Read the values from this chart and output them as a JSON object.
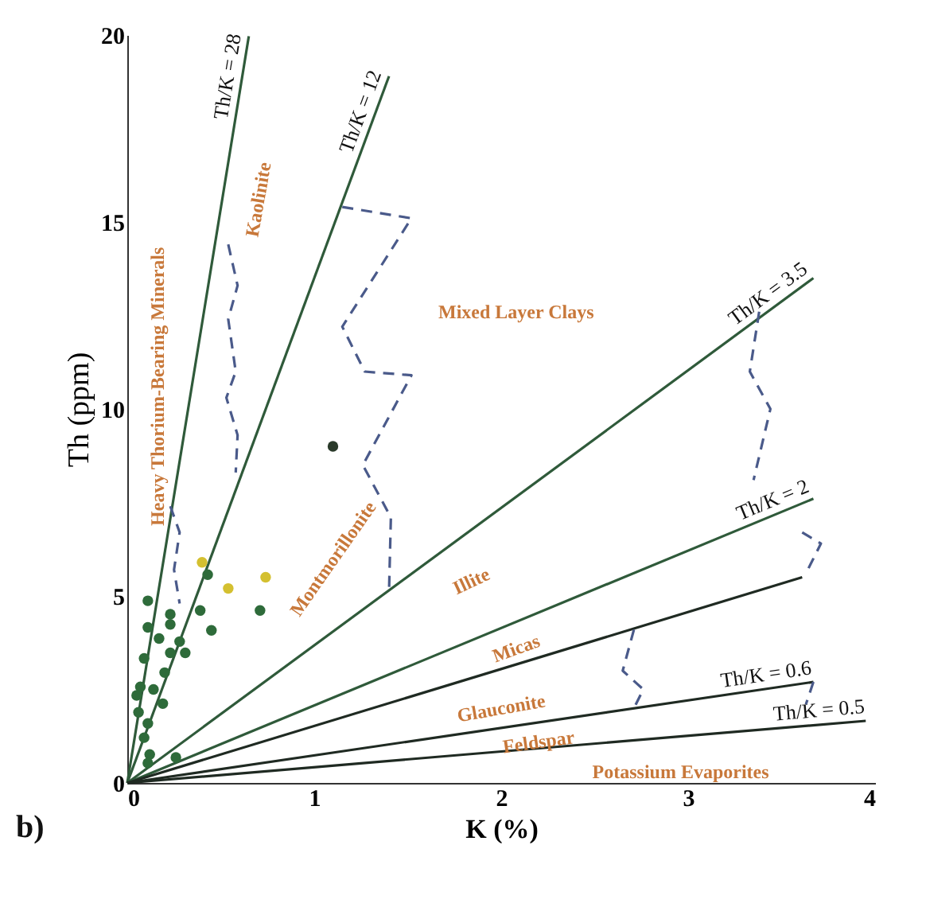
{
  "chart_data": {
    "type": "scatter",
    "xlabel": "K (%)",
    "ylabel": "Th (ppm)",
    "xlim": [
      0,
      4
    ],
    "ylim": [
      0,
      20
    ],
    "xticks": [
      0,
      1,
      2,
      3,
      4
    ],
    "yticks": [
      0,
      5,
      10,
      15,
      20
    ],
    "grid": false,
    "series": [
      {
        "type": "line",
        "name": "Th/K = 28",
        "color": "#2f5a3a",
        "line_style": "solid",
        "x": [
          0,
          0.65
        ],
        "values": [
          0,
          19.97
        ]
      },
      {
        "type": "line",
        "name": "Th/K = 12",
        "color": "#2f5a3a",
        "line_style": "solid",
        "x": [
          0,
          1.4
        ],
        "values": [
          0,
          18.9
        ]
      },
      {
        "type": "line",
        "name": "Th/K = 3.5",
        "color": "#2f5a3a",
        "line_style": "solid",
        "x": [
          0,
          3.67
        ],
        "values": [
          0,
          13.5
        ]
      },
      {
        "type": "line",
        "name": "Th/K = 2",
        "color": "#2f5a3a",
        "line_style": "solid",
        "x": [
          0,
          3.67
        ],
        "values": [
          0,
          7.6
        ]
      },
      {
        "type": "line",
        "color": "#1f2a22",
        "line_style": "solid",
        "x": [
          0,
          3.61
        ],
        "values": [
          0,
          5.5
        ]
      },
      {
        "type": "line",
        "name": "Th/K = 0.6",
        "color": "#1f2a22",
        "line_style": "solid",
        "x": [
          0,
          3.67
        ],
        "values": [
          0,
          2.7
        ]
      },
      {
        "type": "line",
        "name": "Th/K = 0.5",
        "color": "#1f2a22",
        "line_style": "solid",
        "x": [
          0,
          3.95
        ],
        "values": [
          0,
          1.66
        ]
      },
      {
        "type": "line",
        "color": "#4a5a8a",
        "line_style": "dashed",
        "x": [
          0.23,
          0.28,
          0.25,
          0.28
        ],
        "values": [
          7.4,
          6.7,
          5.7,
          4.8
        ]
      },
      {
        "type": "line",
        "color": "#4a5a8a",
        "line_style": "dashed",
        "x": [
          0.54,
          0.59,
          0.54,
          0.58,
          0.53,
          0.59,
          0.58
        ],
        "values": [
          14.4,
          13.3,
          12.4,
          11.0,
          10.3,
          9.3,
          8.3
        ]
      },
      {
        "type": "line",
        "color": "#4a5a8a",
        "line_style": "dashed",
        "x": [
          1.15,
          1.52,
          1.15,
          1.27,
          1.52,
          1.26,
          1.41,
          1.4
        ],
        "values": [
          15.4,
          15.1,
          12.2,
          11.0,
          10.9,
          8.5,
          7.1,
          5.1
        ]
      },
      {
        "type": "line",
        "color": "#4a5a8a",
        "line_style": "dashed",
        "x": [
          3.38,
          3.33,
          3.44,
          3.35
        ],
        "values": [
          12.6,
          11.0,
          10.0,
          8.1
        ]
      },
      {
        "type": "line",
        "color": "#4a5a8a",
        "line_style": "dashed",
        "x": [
          3.61,
          3.71,
          3.63
        ],
        "values": [
          6.7,
          6.4,
          5.6
        ]
      },
      {
        "type": "line",
        "color": "#4a5a8a",
        "line_style": "dashed",
        "x": [
          2.71,
          2.65,
          2.76,
          2.71
        ],
        "values": [
          4.1,
          3.0,
          2.5,
          2.0
        ]
      },
      {
        "type": "line",
        "color": "#4a5a8a",
        "line_style": "dashed",
        "x": [
          3.67,
          3.63
        ],
        "values": [
          2.7,
          2.1
        ]
      },
      {
        "marker": "circle",
        "color": "#2e6b3a",
        "x": [
          0.11,
          0.11,
          0.23,
          0.23,
          0.17,
          0.28,
          0.39,
          0.31,
          0.43,
          0.09,
          0.07,
          0.14,
          0.19,
          0.06,
          0.11,
          0.09,
          0.12,
          0.11,
          0.26,
          0.45,
          0.71,
          0.05,
          0.23,
          0.2
        ],
        "values": [
          4.87,
          4.16,
          4.51,
          4.24,
          3.86,
          3.78,
          4.61,
          3.48,
          5.57,
          3.33,
          2.57,
          2.5,
          2.12,
          1.89,
          1.59,
          1.21,
          0.76,
          0.53,
          0.68,
          4.08,
          4.61,
          2.34,
          3.48,
          2.95
        ]
      },
      {
        "marker": "circle",
        "color": "#d4c030",
        "x": [
          0.4,
          0.54,
          0.74
        ],
        "values": [
          5.9,
          5.2,
          5.5
        ]
      },
      {
        "marker": "circle",
        "color": "#2a3a2a",
        "x": [
          1.1
        ],
        "values": [
          9.0
        ]
      }
    ],
    "annotations": [
      "Heavy Thorium-Bearing Minerals",
      "Kaolinite",
      "Mixed Layer Clays",
      "Montmorillonite",
      "Illite",
      "Micas",
      "Glauconite",
      "Feldspar",
      "Potassium Evaporites",
      "b)"
    ]
  }
}
